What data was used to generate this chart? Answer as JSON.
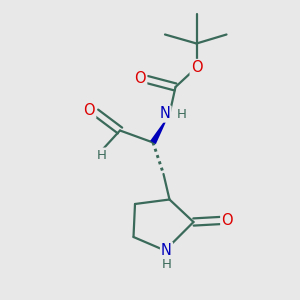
{
  "bg_color": "#e8e8e8",
  "bond_color": "#3a6a5a",
  "bond_lw": 1.6,
  "atom_colors": {
    "O": "#dd0000",
    "N": "#0000bb",
    "C": "#3a6a5a",
    "H": "#3a6a5a"
  },
  "fs": 10.5,
  "fs_small": 9.5
}
